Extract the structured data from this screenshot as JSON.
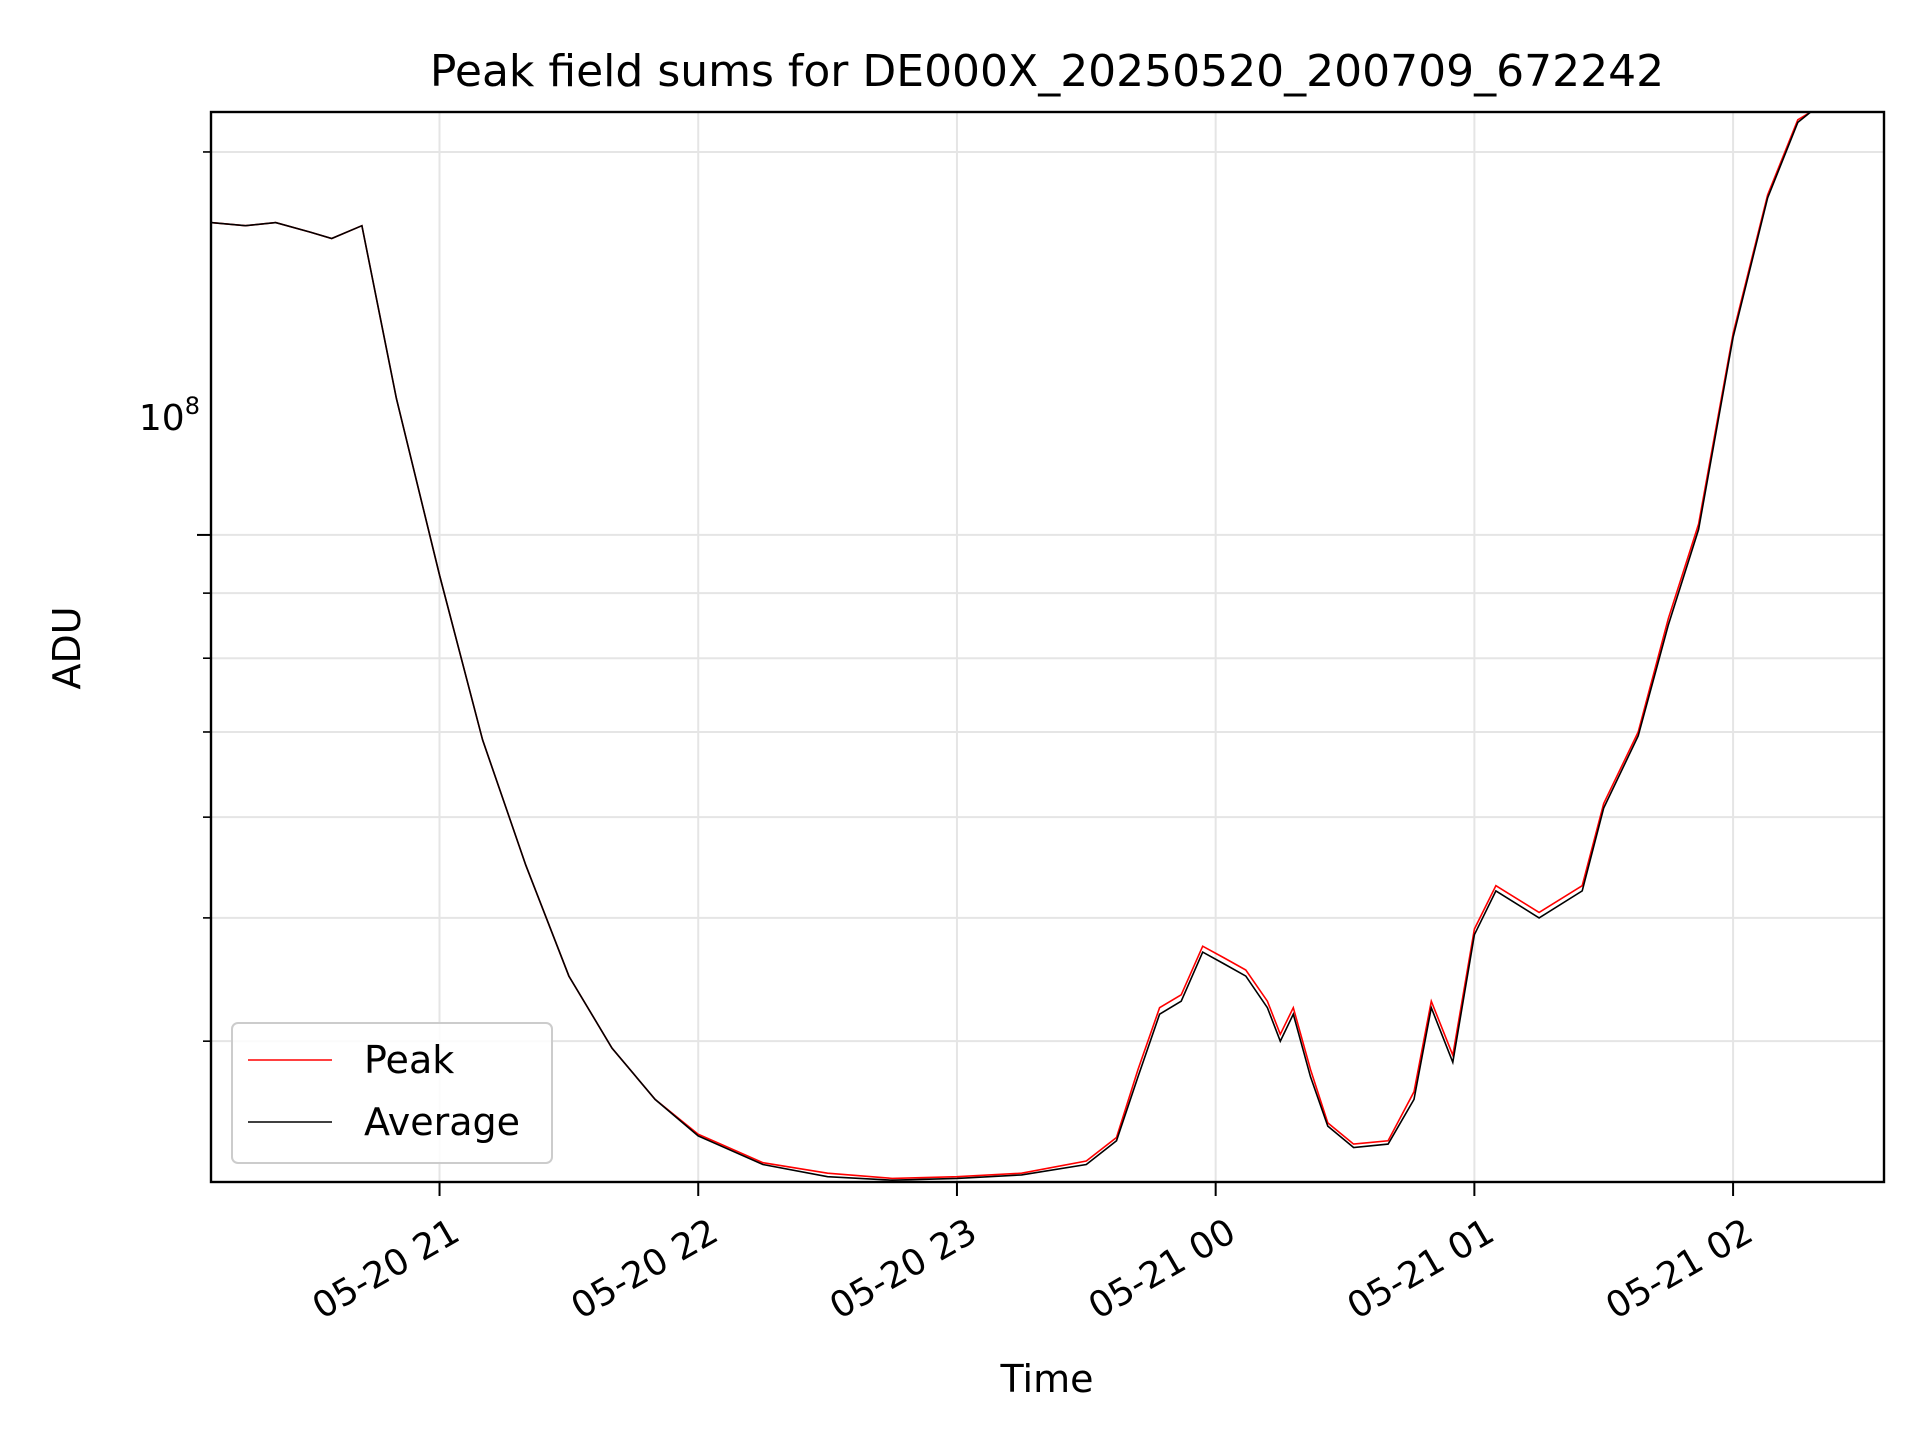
{
  "chart_data": {
    "type": "line",
    "title": "Peak field sums for DE000X_20250520_200709_672242",
    "xlabel": "Time",
    "ylabel": "ADU",
    "y_scale": "log",
    "grid": true,
    "legend_position": "lower-left",
    "x_range": [
      "2025-05-20 20:07",
      "2025-05-21 02:35"
    ],
    "y_range": [
      31000000,
      215000000
    ],
    "x_ticks": [
      "05-20 21",
      "05-20 22",
      "05-20 23",
      "05-21 00",
      "05-21 01",
      "05-21 02"
    ],
    "y_tick_major": {
      "label_base": "10",
      "label_exp": "8",
      "value": 100000000
    },
    "y_minor_ticks": [
      40000000,
      50000000,
      60000000,
      70000000,
      80000000,
      90000000,
      200000000
    ],
    "series": [
      {
        "name": "Peak",
        "color": "#ff0000",
        "points": [
          [
            "2025-05-20 20:07",
            176000000
          ],
          [
            "2025-05-20 20:15",
            175000000
          ],
          [
            "2025-05-20 20:22",
            176000000
          ],
          [
            "2025-05-20 20:30",
            173000000
          ],
          [
            "2025-05-20 20:35",
            171000000
          ],
          [
            "2025-05-20 20:42",
            175000000
          ],
          [
            "2025-05-20 20:50",
            128000000
          ],
          [
            "2025-05-20 21:00",
            93000000
          ],
          [
            "2025-05-20 21:10",
            69000000
          ],
          [
            "2025-05-20 21:20",
            55000000
          ],
          [
            "2025-05-20 21:30",
            45000000
          ],
          [
            "2025-05-20 21:40",
            39500000
          ],
          [
            "2025-05-20 21:50",
            36000000
          ],
          [
            "2025-05-20 22:00",
            33800000
          ],
          [
            "2025-05-20 22:15",
            32100000
          ],
          [
            "2025-05-20 22:30",
            31500000
          ],
          [
            "2025-05-20 22:45",
            31200000
          ],
          [
            "2025-05-20 23:00",
            31300000
          ],
          [
            "2025-05-20 23:15",
            31500000
          ],
          [
            "2025-05-20 23:30",
            32200000
          ],
          [
            "2025-05-20 23:37",
            33600000
          ],
          [
            "2025-05-20 23:42",
            38000000
          ],
          [
            "2025-05-20 23:47",
            42500000
          ],
          [
            "2025-05-20 23:52",
            43500000
          ],
          [
            "2025-05-20 23:57",
            47500000
          ],
          [
            "2025-05-21 00:02",
            46500000
          ],
          [
            "2025-05-21 00:07",
            45500000
          ],
          [
            "2025-05-21 00:12",
            43000000
          ],
          [
            "2025-05-21 00:15",
            40500000
          ],
          [
            "2025-05-21 00:18",
            42500000
          ],
          [
            "2025-05-21 00:22",
            38000000
          ],
          [
            "2025-05-21 00:26",
            34500000
          ],
          [
            "2025-05-21 00:32",
            33200000
          ],
          [
            "2025-05-21 00:40",
            33400000
          ],
          [
            "2025-05-21 00:46",
            36500000
          ],
          [
            "2025-05-21 00:50",
            43000000
          ],
          [
            "2025-05-21 00:55",
            39000000
          ],
          [
            "2025-05-21 01:00",
            49000000
          ],
          [
            "2025-05-21 01:05",
            53000000
          ],
          [
            "2025-05-21 01:15",
            50500000
          ],
          [
            "2025-05-21 01:25",
            53000000
          ],
          [
            "2025-05-21 01:30",
            61500000
          ],
          [
            "2025-05-21 01:38",
            70000000
          ],
          [
            "2025-05-21 01:45",
            86000000
          ],
          [
            "2025-05-21 01:52",
            102000000
          ],
          [
            "2025-05-21 02:00",
            144000000
          ],
          [
            "2025-05-21 02:08",
            185000000
          ],
          [
            "2025-05-21 02:15",
            212000000
          ],
          [
            "2025-05-21 02:18",
            215000000
          ]
        ]
      },
      {
        "name": "Average",
        "color": "#000000",
        "points": [
          [
            "2025-05-20 20:07",
            176000000
          ],
          [
            "2025-05-20 20:15",
            175000000
          ],
          [
            "2025-05-20 20:22",
            176000000
          ],
          [
            "2025-05-20 20:30",
            173000000
          ],
          [
            "2025-05-20 20:35",
            171000000
          ],
          [
            "2025-05-20 20:42",
            175000000
          ],
          [
            "2025-05-20 20:50",
            128000000
          ],
          [
            "2025-05-20 21:00",
            93000000
          ],
          [
            "2025-05-20 21:10",
            69000000
          ],
          [
            "2025-05-20 21:20",
            55000000
          ],
          [
            "2025-05-20 21:30",
            45000000
          ],
          [
            "2025-05-20 21:40",
            39500000
          ],
          [
            "2025-05-20 21:50",
            36000000
          ],
          [
            "2025-05-20 22:00",
            33700000
          ],
          [
            "2025-05-20 22:15",
            32000000
          ],
          [
            "2025-05-20 22:30",
            31300000
          ],
          [
            "2025-05-20 22:45",
            31100000
          ],
          [
            "2025-05-20 23:00",
            31200000
          ],
          [
            "2025-05-20 23:15",
            31400000
          ],
          [
            "2025-05-20 23:30",
            32000000
          ],
          [
            "2025-05-20 23:37",
            33400000
          ],
          [
            "2025-05-20 23:42",
            37500000
          ],
          [
            "2025-05-20 23:47",
            42000000
          ],
          [
            "2025-05-20 23:52",
            43000000
          ],
          [
            "2025-05-20 23:57",
            47000000
          ],
          [
            "2025-05-21 00:02",
            46000000
          ],
          [
            "2025-05-21 00:07",
            45000000
          ],
          [
            "2025-05-21 00:12",
            42500000
          ],
          [
            "2025-05-21 00:15",
            40000000
          ],
          [
            "2025-05-21 00:18",
            42000000
          ],
          [
            "2025-05-21 00:22",
            37500000
          ],
          [
            "2025-05-21 00:26",
            34300000
          ],
          [
            "2025-05-21 00:32",
            33000000
          ],
          [
            "2025-05-21 00:40",
            33200000
          ],
          [
            "2025-05-21 00:46",
            36000000
          ],
          [
            "2025-05-21 00:50",
            42500000
          ],
          [
            "2025-05-21 00:55",
            38500000
          ],
          [
            "2025-05-21 01:00",
            48500000
          ],
          [
            "2025-05-21 01:05",
            52500000
          ],
          [
            "2025-05-21 01:15",
            50000000
          ],
          [
            "2025-05-21 01:25",
            52500000
          ],
          [
            "2025-05-21 01:30",
            61000000
          ],
          [
            "2025-05-21 01:38",
            69500000
          ],
          [
            "2025-05-21 01:45",
            85000000
          ],
          [
            "2025-05-21 01:52",
            101000000
          ],
          [
            "2025-05-21 02:00",
            143000000
          ],
          [
            "2025-05-21 02:08",
            184000000
          ],
          [
            "2025-05-21 02:15",
            211000000
          ],
          [
            "2025-05-21 02:18",
            215000000
          ]
        ]
      }
    ]
  }
}
